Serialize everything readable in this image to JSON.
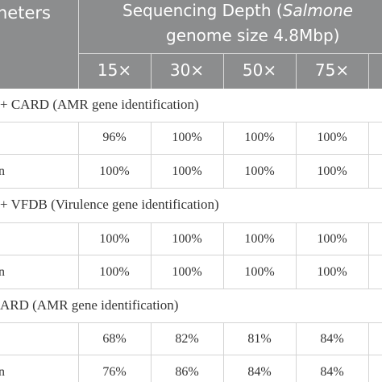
{
  "header": {
    "param_label": "neters",
    "seq_title_line1_prefix": "Sequencing Depth (",
    "seq_title_italic": "Salmone",
    "seq_title_line2": "genome size 4.8Mbp)",
    "depths": [
      "15×",
      "30×",
      "50×",
      "75×"
    ]
  },
  "sections": [
    {
      "title": "+ CARD (AMR gene identification)",
      "rows": [
        {
          "label": "",
          "values": [
            "96%",
            "100%",
            "100%",
            "100%"
          ]
        },
        {
          "label": "n",
          "values": [
            "100%",
            "100%",
            "100%",
            "100%"
          ]
        }
      ]
    },
    {
      "title": "+ VFDB (Virulence gene identification)",
      "rows": [
        {
          "label": "",
          "values": [
            "100%",
            "100%",
            "100%",
            "100%"
          ]
        },
        {
          "label": "n",
          "values": [
            "100%",
            "100%",
            "100%",
            "100%"
          ]
        }
      ]
    },
    {
      "title": "ARD (AMR gene identification)",
      "rows": [
        {
          "label": "",
          "values": [
            "68%",
            "82%",
            "81%",
            "84%"
          ]
        },
        {
          "label": "n",
          "values": [
            "76%",
            "86%",
            "84%",
            "84%"
          ]
        }
      ]
    }
  ]
}
